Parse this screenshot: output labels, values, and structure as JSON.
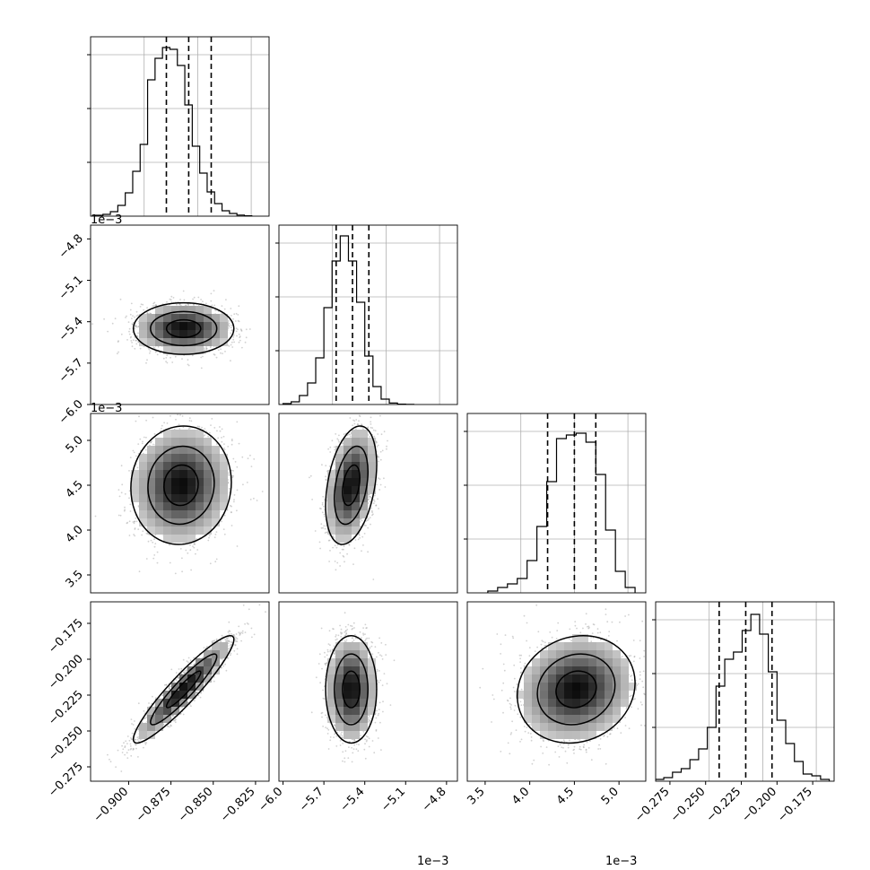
{
  "chart_data": {
    "type": "corner",
    "panels": [
      {
        "id": "p00",
        "row": 0,
        "col": 0,
        "type": "histogram",
        "grid": true,
        "x": {
          "range": [
            -0.9225,
            -0.817
          ],
          "ticks": []
        },
        "y": {
          "range": [
            0,
            1.0
          ],
          "ticks": []
        },
        "bin_edges": [
          -0.9196,
          -0.9152,
          -0.9108,
          -0.9064,
          -0.902,
          -0.8976,
          -0.8932,
          -0.8888,
          -0.8844,
          -0.88,
          -0.8756,
          -0.8712,
          -0.8668,
          -0.8624,
          -0.858,
          -0.8536,
          -0.8492,
          -0.8448,
          -0.8404,
          -0.836,
          -0.8316,
          -0.8272
        ],
        "counts": [
          0.005,
          0.01,
          0.025,
          0.06,
          0.13,
          0.25,
          0.4,
          0.76,
          0.88,
          0.94,
          0.93,
          0.84,
          0.62,
          0.39,
          0.24,
          0.135,
          0.07,
          0.03,
          0.015,
          0.006,
          0.002
        ],
        "quantiles": [
          -0.8777,
          -0.8645,
          -0.8512
        ]
      },
      {
        "id": "p10",
        "row": 1,
        "col": 0,
        "type": "scatter",
        "grid": false,
        "x": {
          "range": [
            -0.9225,
            -0.817
          ],
          "ticks": []
        },
        "y": {
          "range": [
            -6.0,
            -4.7
          ],
          "ticks": [
            -6.0,
            -5.7,
            -5.4,
            -5.1,
            -4.8
          ],
          "tick_labels": [
            "−6.0",
            "−5.7",
            "−5.4",
            "−5.1",
            "−4.8"
          ],
          "offset": "1e−3"
        },
        "center": [
          -0.8675,
          -5.45
        ],
        "sigma": [
          0.0135,
          0.085
        ],
        "corr": 0.0
      },
      {
        "id": "p11",
        "row": 1,
        "col": 1,
        "type": "histogram",
        "grid": true,
        "x": {
          "range": [
            -6.03,
            -4.72
          ],
          "ticks": []
        },
        "y": {
          "range": [
            0,
            1.0
          ],
          "ticks": []
        },
        "bin_edges": [
          -6.0,
          -5.94,
          -5.88,
          -5.82,
          -5.76,
          -5.7,
          -5.64,
          -5.58,
          -5.52,
          -5.46,
          -5.4,
          -5.34,
          -5.28,
          -5.22,
          -5.16,
          -5.1,
          -5.04
        ],
        "counts": [
          0.005,
          0.015,
          0.05,
          0.12,
          0.26,
          0.54,
          0.8,
          0.94,
          0.8,
          0.57,
          0.27,
          0.1,
          0.03,
          0.008,
          0.002,
          0.001
        ],
        "quantiles": [
          -5.61,
          -5.49,
          -5.37
        ]
      },
      {
        "id": "p20",
        "row": 2,
        "col": 0,
        "type": "scatter",
        "grid": false,
        "x": {
          "range": [
            -0.9225,
            -0.817
          ],
          "ticks": []
        },
        "y": {
          "range": [
            3.3,
            5.3
          ],
          "ticks": [
            3.5,
            4.0,
            4.5,
            5.0
          ],
          "tick_labels": [
            "3.5",
            "4.0",
            "4.5",
            "5.0"
          ],
          "offset": "1e−3"
        },
        "center": [
          -0.869,
          4.5
        ],
        "sigma": [
          0.0135,
          0.3
        ],
        "corr": 0.05
      },
      {
        "id": "p21",
        "row": 2,
        "col": 1,
        "type": "scatter",
        "grid": false,
        "x": {
          "range": [
            -6.03,
            -4.72
          ],
          "ticks": []
        },
        "y": {
          "range": [
            3.3,
            5.3
          ],
          "ticks": []
        },
        "center": [
          -5.5,
          4.5
        ],
        "sigma": [
          0.085,
          0.3
        ],
        "corr": 0.35
      },
      {
        "id": "p22",
        "row": 2,
        "col": 2,
        "type": "histogram",
        "grid": true,
        "x": {
          "range": [
            3.3,
            5.3
          ],
          "ticks": []
        },
        "y": {
          "range": [
            0,
            1.0
          ],
          "ticks": []
        },
        "bin_edges": [
          3.53,
          3.64,
          3.75,
          3.86,
          3.97,
          4.08,
          4.19,
          4.3,
          4.41,
          4.52,
          4.63,
          4.74,
          4.85,
          4.96,
          5.07,
          5.18
        ],
        "counts": [
          0.01,
          0.03,
          0.05,
          0.08,
          0.18,
          0.37,
          0.62,
          0.86,
          0.88,
          0.89,
          0.84,
          0.66,
          0.35,
          0.12,
          0.03
        ],
        "quantiles": [
          4.2,
          4.5,
          4.74
        ]
      },
      {
        "id": "p30",
        "row": 3,
        "col": 0,
        "type": "scatter",
        "grid": false,
        "x": {
          "range": [
            -0.9225,
            -0.817
          ],
          "ticks": [
            -0.9,
            -0.875,
            -0.85,
            -0.825
          ],
          "tick_labels": [
            "−0.900",
            "−0.875",
            "−0.850",
            "−0.825"
          ]
        },
        "y": {
          "range": [
            -0.285,
            -0.16
          ],
          "ticks": [
            -0.275,
            -0.25,
            -0.225,
            -0.2,
            -0.175
          ],
          "tick_labels": [
            "−0.275",
            "−0.250",
            "−0.225",
            "−0.200",
            "−0.175"
          ]
        },
        "center": [
          -0.8675,
          -0.221
        ],
        "sigma": [
          0.0135,
          0.017
        ],
        "corr": 0.93
      },
      {
        "id": "p31",
        "row": 3,
        "col": 1,
        "type": "scatter",
        "grid": false,
        "x": {
          "range": [
            -6.03,
            -4.72
          ],
          "ticks": [
            -6.0,
            -5.7,
            -5.4,
            -5.1,
            -4.8
          ],
          "tick_labels": [
            "−6.0",
            "−5.7",
            "−5.4",
            "−5.1",
            "−4.8"
          ],
          "offset": "1e−3"
        },
        "y": {
          "range": [
            -0.285,
            -0.16
          ],
          "ticks": []
        },
        "center": [
          -5.5,
          -0.221
        ],
        "sigma": [
          0.085,
          0.017
        ],
        "corr": 0.0
      },
      {
        "id": "p32",
        "row": 3,
        "col": 2,
        "type": "scatter",
        "grid": false,
        "x": {
          "range": [
            3.3,
            5.3
          ],
          "ticks": [
            3.5,
            4.0,
            4.5,
            5.0
          ],
          "tick_labels": [
            "3.5",
            "4.0",
            "4.5",
            "5.0"
          ],
          "offset": "1e−3"
        },
        "y": {
          "range": [
            -0.285,
            -0.16
          ],
          "ticks": []
        },
        "center": [
          4.52,
          -0.221
        ],
        "sigma": [
          0.3,
          0.017
        ],
        "corr": 0.12
      },
      {
        "id": "p33",
        "row": 3,
        "col": 3,
        "type": "histogram",
        "grid": true,
        "x": {
          "range": [
            -0.285,
            -0.16
          ],
          "ticks": [
            -0.275,
            -0.25,
            -0.225,
            -0.2,
            -0.175
          ],
          "tick_labels": [
            "−0.275",
            "−0.250",
            "−0.225",
            "−0.200",
            "−0.175"
          ]
        },
        "y": {
          "range": [
            0,
            1.0
          ],
          "ticks": []
        },
        "bin_edges": [
          -0.2854,
          -0.2793,
          -0.2732,
          -0.2671,
          -0.261,
          -0.2549,
          -0.2488,
          -0.2427,
          -0.2366,
          -0.2305,
          -0.2244,
          -0.2183,
          -0.2122,
          -0.2061,
          -0.2,
          -0.1939,
          -0.1878,
          -0.1817,
          -0.1756,
          -0.1695,
          -0.1634
        ],
        "counts": [
          0.01,
          0.02,
          0.05,
          0.07,
          0.12,
          0.18,
          0.3,
          0.53,
          0.68,
          0.72,
          0.84,
          0.93,
          0.82,
          0.61,
          0.34,
          0.21,
          0.11,
          0.04,
          0.03,
          0.01
        ],
        "quantiles": [
          -0.2405,
          -0.2219,
          -0.2035
        ]
      }
    ]
  }
}
